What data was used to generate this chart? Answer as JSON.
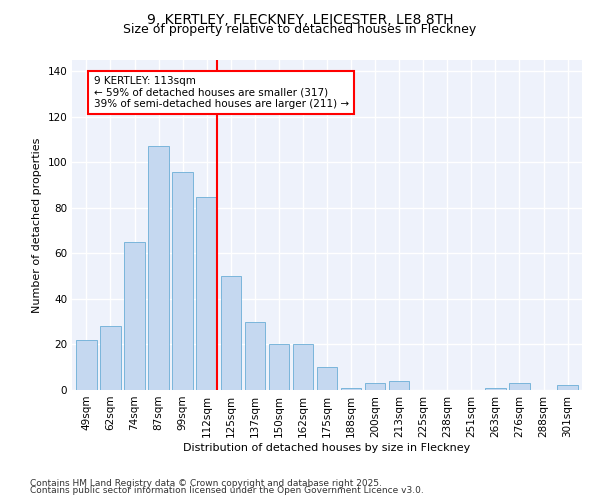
{
  "title1": "9, KERTLEY, FLECKNEY, LEICESTER, LE8 8TH",
  "title2": "Size of property relative to detached houses in Fleckney",
  "xlabel": "Distribution of detached houses by size in Fleckney",
  "ylabel": "Number of detached properties",
  "categories": [
    "49sqm",
    "62sqm",
    "74sqm",
    "87sqm",
    "99sqm",
    "112sqm",
    "125sqm",
    "137sqm",
    "150sqm",
    "162sqm",
    "175sqm",
    "188sqm",
    "200sqm",
    "213sqm",
    "225sqm",
    "238sqm",
    "251sqm",
    "263sqm",
    "276sqm",
    "288sqm",
    "301sqm"
  ],
  "values": [
    22,
    28,
    65,
    107,
    96,
    85,
    50,
    30,
    20,
    20,
    10,
    1,
    3,
    4,
    0,
    0,
    0,
    1,
    3,
    0,
    2
  ],
  "bar_color": "#c5d8f0",
  "bar_edge_color": "#6baed6",
  "vline_color": "red",
  "annotation_text": "9 KERTLEY: 113sqm\n← 59% of detached houses are smaller (317)\n39% of semi-detached houses are larger (211) →",
  "annotation_box_color": "red",
  "annotation_box_facecolor": "white",
  "ylim": [
    0,
    145
  ],
  "yticks": [
    0,
    20,
    40,
    60,
    80,
    100,
    120,
    140
  ],
  "background_color": "#eef2fb",
  "grid_color": "white",
  "footer1": "Contains HM Land Registry data © Crown copyright and database right 2025.",
  "footer2": "Contains public sector information licensed under the Open Government Licence v3.0.",
  "title1_fontsize": 10,
  "title2_fontsize": 9,
  "axis_label_fontsize": 8,
  "tick_fontsize": 7.5,
  "annotation_fontsize": 7.5,
  "footer_fontsize": 6.5
}
